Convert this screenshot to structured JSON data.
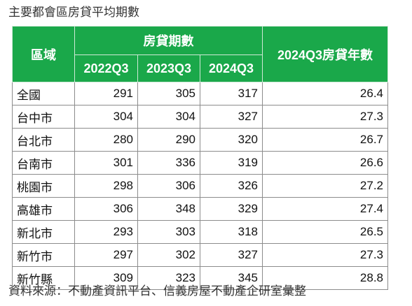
{
  "title": "主要都會區房貸平均期數",
  "header": {
    "region": "區域",
    "group": "房貸期數",
    "years_label": "2024Q3房貸年數",
    "periods": [
      "2022Q3",
      "2023Q3",
      "2024Q3"
    ]
  },
  "rows": [
    {
      "region": "全國",
      "v1": "291",
      "v2": "305",
      "v3": "317",
      "years": "26.4"
    },
    {
      "region": "台中市",
      "v1": "304",
      "v2": "304",
      "v3": "327",
      "years": "27.3"
    },
    {
      "region": "台北市",
      "v1": "280",
      "v2": "290",
      "v3": "320",
      "years": "26.7"
    },
    {
      "region": "台南市",
      "v1": "301",
      "v2": "336",
      "v3": "319",
      "years": "26.6"
    },
    {
      "region": "桃園市",
      "v1": "298",
      "v2": "306",
      "v3": "326",
      "years": "27.2"
    },
    {
      "region": "高雄市",
      "v1": "306",
      "v2": "348",
      "v3": "329",
      "years": "27.4"
    },
    {
      "region": "新北市",
      "v1": "293",
      "v2": "303",
      "v3": "318",
      "years": "26.5"
    },
    {
      "region": "新竹市",
      "v1": "297",
      "v2": "302",
      "v3": "327",
      "years": "27.3"
    },
    {
      "region": "新竹縣",
      "v1": "309",
      "v2": "323",
      "v3": "345",
      "years": "28.8"
    }
  ],
  "source": "資料來源：不動產資訊平台、信義房屋不動產企研室彙整",
  "colors": {
    "header_bg": "#1aa84a",
    "header_text": "#ffffff",
    "border": "#8c8c8c"
  }
}
